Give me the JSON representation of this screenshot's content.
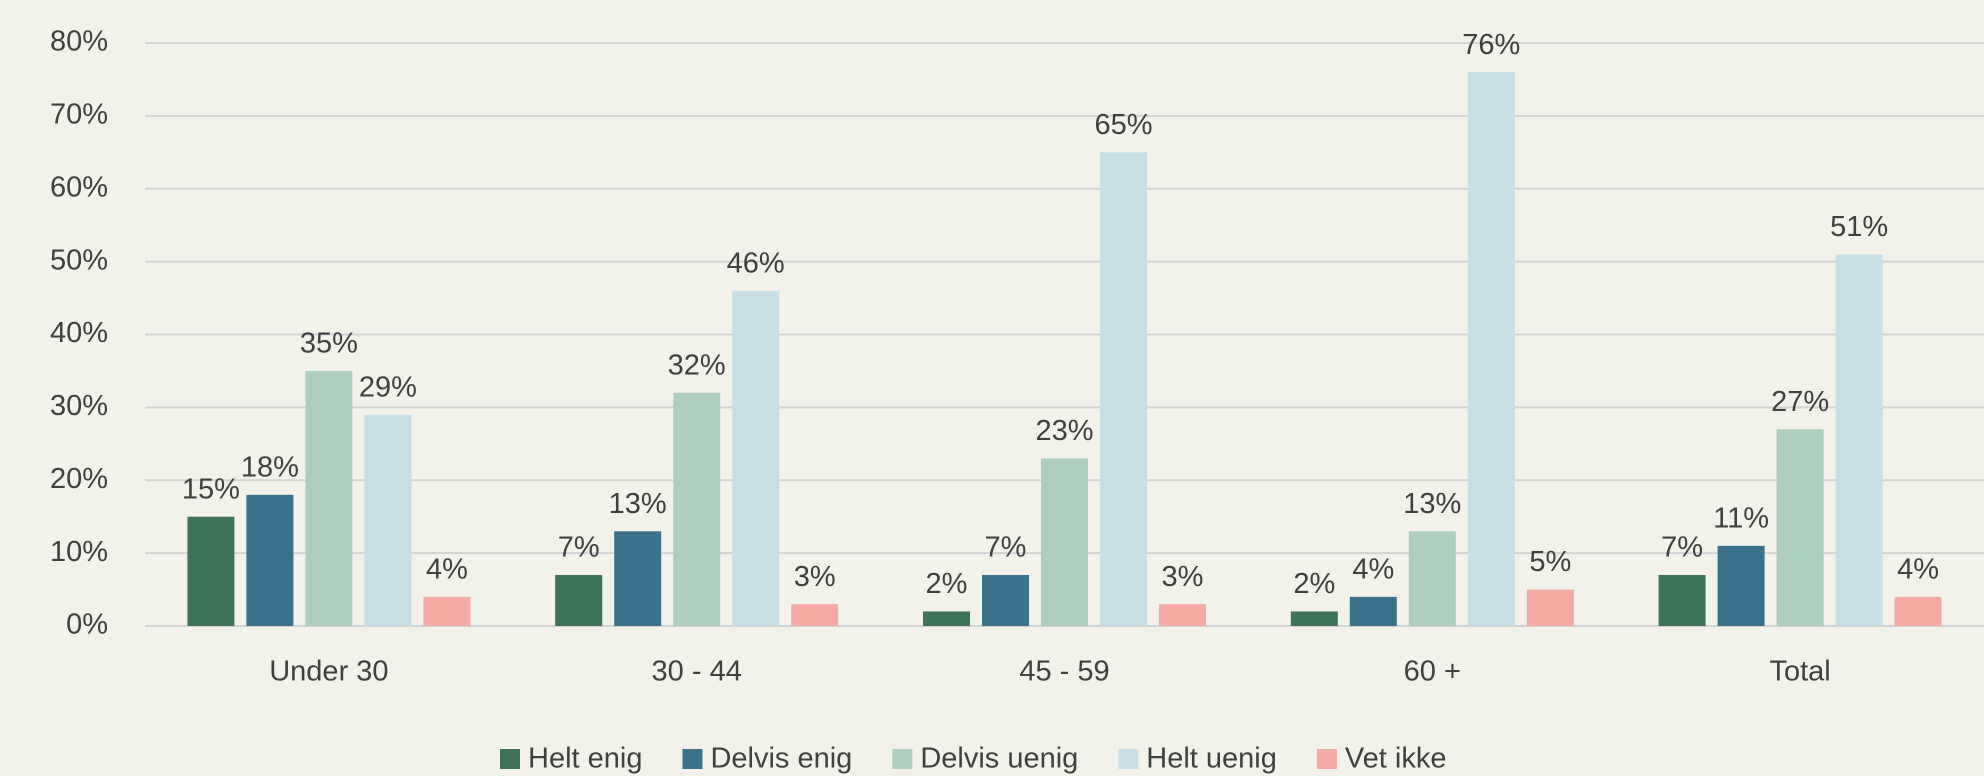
{
  "chart_data": {
    "type": "bar",
    "categories": [
      "Under 30",
      "30 - 44",
      "45 - 59",
      "60 +",
      "Total"
    ],
    "series": [
      {
        "name": "Helt enig",
        "color": "#3f7359",
        "values": [
          15,
          7,
          2,
          2,
          7
        ],
        "value_labels": [
          "15%",
          "7%",
          "2%",
          "2%",
          "7%"
        ]
      },
      {
        "name": "Delvis enig",
        "color": "#3a728c",
        "values": [
          18,
          13,
          7,
          4,
          11
        ],
        "value_labels": [
          "18%",
          "13%",
          "7%",
          "4%",
          "11%"
        ]
      },
      {
        "name": "Delvis uenig",
        "color": "#aecfc0",
        "values": [
          35,
          32,
          23,
          13,
          27
        ],
        "value_labels": [
          "35%",
          "32%",
          "23%",
          "13%",
          "27%"
        ]
      },
      {
        "name": "Helt uenig",
        "color": "#c9dfe6",
        "values": [
          29,
          46,
          65,
          76,
          51
        ],
        "value_labels": [
          "29%",
          "46%",
          "65%",
          "76%",
          "51%"
        ]
      },
      {
        "name": "Vet ikke",
        "color": "#f6aaa5",
        "values": [
          4,
          3,
          3,
          5,
          4
        ],
        "value_labels": [
          "4%",
          "3%",
          "3%",
          "5%",
          "4%"
        ]
      }
    ],
    "ylim": [
      0,
      80
    ],
    "yticks": [
      {
        "value": 0,
        "label": "0%"
      },
      {
        "value": 10,
        "label": "10%"
      },
      {
        "value": 20,
        "label": "20%"
      },
      {
        "value": 30,
        "label": "30%"
      },
      {
        "value": 40,
        "label": "40%"
      },
      {
        "value": 50,
        "label": "50%"
      },
      {
        "value": 60,
        "label": "60%"
      },
      {
        "value": 70,
        "label": "70%"
      },
      {
        "value": 80,
        "label": "80%"
      }
    ],
    "grid": true,
    "legend": "bottom"
  }
}
